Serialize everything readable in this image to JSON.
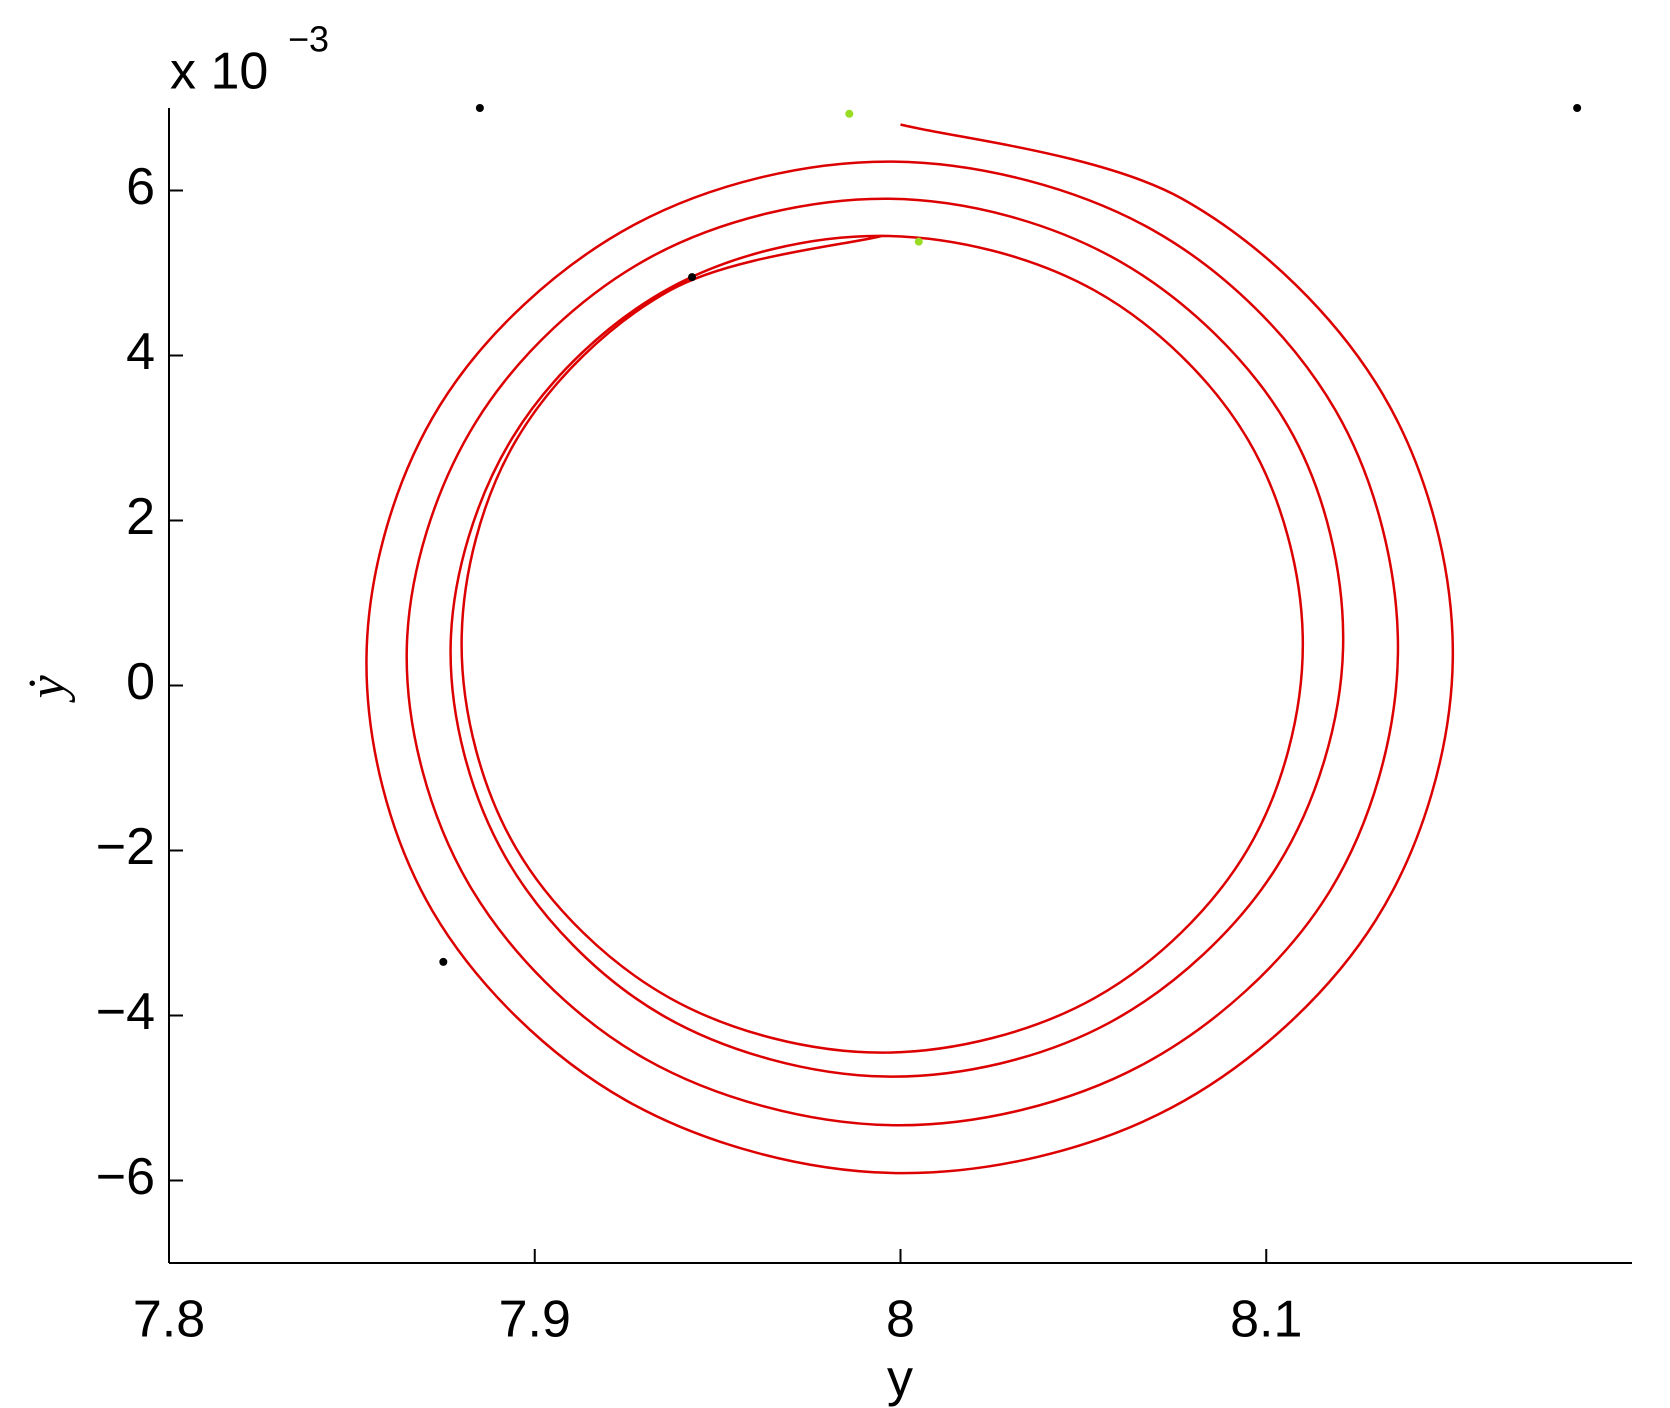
{
  "chart_data": {
    "type": "line",
    "x_label": "y",
    "y_label": "ẏ",
    "y_scale": {
      "base": "x 10",
      "exponent": "−3"
    },
    "xlim": [
      7.8,
      8.2
    ],
    "xticks": [
      7.8,
      7.9,
      8,
      8.1
    ],
    "ylim": [
      -7,
      7
    ],
    "yticks": [
      {
        "value": -6,
        "label": "−6"
      },
      {
        "value": -4,
        "label": "−4"
      },
      {
        "value": -2,
        "label": "−2"
      },
      0,
      2,
      4,
      6
    ],
    "series": [
      {
        "style": "line",
        "color": "#dd0000",
        "x": [
          8.0,
          8.077,
          8.132,
          8.151,
          8.13,
          8.074,
          7.999,
          7.925,
          7.872,
          7.854,
          7.874,
          7.927,
          7.998,
          8.069,
          8.119,
          8.136,
          8.117,
          8.066,
          7.998,
          7.93,
          7.882,
          7.865,
          7.884,
          7.932,
          7.997,
          8.06,
          8.106,
          8.121,
          8.103,
          8.057,
          7.996,
          7.935,
          7.892,
          7.877,
          7.894,
          7.937,
          7.995,
          8.053,
          8.095,
          8.11,
          8.095,
          8.053,
          7.995,
          7.937,
          7.895,
          7.88,
          7.895,
          7.937,
          7.995
        ],
        "values": [
          6.8,
          5.9,
          3.52,
          0.32,
          -2.84,
          -5.12,
          -5.91,
          -5.03,
          -2.73,
          0.35,
          3.39,
          5.58,
          6.35,
          5.52,
          3.33,
          0.38,
          -2.52,
          -4.6,
          -5.33,
          -4.52,
          -2.41,
          0.42,
          3.2,
          5.2,
          5.9,
          5.14,
          3.14,
          0.45,
          -2.19,
          -4.09,
          -4.74,
          -4.0,
          -2.08,
          0.48,
          3.01,
          4.82,
          5.45,
          4.79,
          2.98,
          0.5,
          -1.98,
          -3.79,
          -4.45,
          -3.79,
          -1.98,
          0.5,
          2.98,
          4.79,
          5.45
        ]
      },
      {
        "style": "dots",
        "color": "#000000",
        "x": [
          7.885,
          8.185,
          7.943,
          7.875
        ],
        "values": [
          7,
          7,
          4.95,
          -3.35
        ]
      },
      {
        "style": "dots",
        "color": "#99dd22",
        "x": [
          7.986,
          8.005
        ],
        "values": [
          6.93,
          5.38
        ]
      }
    ]
  }
}
